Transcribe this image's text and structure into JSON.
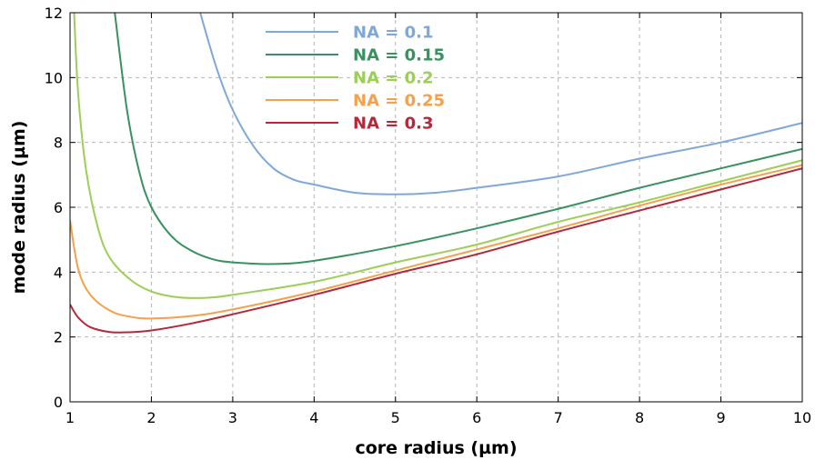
{
  "chart_data": {
    "type": "line",
    "title": "",
    "xlabel": "core radius (µm)",
    "ylabel": "mode radius (µm)",
    "xlim": [
      1,
      10
    ],
    "ylim": [
      0,
      12
    ],
    "xticks": [
      1,
      2,
      3,
      4,
      5,
      6,
      7,
      8,
      9,
      10
    ],
    "yticks": [
      0,
      2,
      4,
      6,
      8,
      10,
      12
    ],
    "grid": true,
    "legend_position": "top-left (inside plot)",
    "series": [
      {
        "name": "NA = 0.1",
        "color": "#7fa8d8",
        "x": [
          2.6,
          2.8,
          3.0,
          3.25,
          3.5,
          3.75,
          4.0,
          4.5,
          5.0,
          5.5,
          6.0,
          7.0,
          8.0,
          9.0,
          10.0
        ],
        "y": [
          12.0,
          10.3,
          9.0,
          7.9,
          7.2,
          6.85,
          6.7,
          6.45,
          6.4,
          6.45,
          6.6,
          6.95,
          7.5,
          8.0,
          8.6
        ]
      },
      {
        "name": "NA = 0.15",
        "color": "#3a9160",
        "x": [
          1.55,
          1.7,
          1.85,
          2.0,
          2.25,
          2.5,
          2.75,
          3.0,
          3.5,
          4.0,
          5.0,
          6.0,
          7.0,
          8.0,
          9.0,
          10.0
        ],
        "y": [
          12.0,
          9.0,
          7.1,
          6.0,
          5.1,
          4.65,
          4.4,
          4.3,
          4.25,
          4.35,
          4.8,
          5.35,
          5.95,
          6.6,
          7.2,
          7.8
        ]
      },
      {
        "name": "NA = 0.2",
        "color": "#9bcf55",
        "x": [
          1.05,
          1.1,
          1.2,
          1.35,
          1.5,
          1.75,
          2.0,
          2.25,
          2.5,
          2.75,
          3.0,
          4.0,
          5.0,
          6.0,
          7.0,
          8.0,
          9.0,
          10.0
        ],
        "y": [
          12.0,
          9.5,
          7.1,
          5.3,
          4.4,
          3.75,
          3.4,
          3.25,
          3.2,
          3.22,
          3.3,
          3.7,
          4.3,
          4.85,
          5.55,
          6.15,
          6.8,
          7.45
        ]
      },
      {
        "name": "NA = 0.25",
        "color": "#f5a04a",
        "x": [
          1.0,
          1.1,
          1.25,
          1.5,
          1.75,
          2.0,
          2.5,
          3.0,
          4.0,
          5.0,
          6.0,
          7.0,
          8.0,
          9.0,
          10.0
        ],
        "y": [
          5.6,
          4.1,
          3.3,
          2.8,
          2.62,
          2.57,
          2.65,
          2.85,
          3.4,
          4.05,
          4.7,
          5.35,
          6.05,
          6.7,
          7.3
        ]
      },
      {
        "name": "NA = 0.3",
        "color": "#b5283a",
        "x": [
          1.0,
          1.1,
          1.25,
          1.5,
          1.75,
          2.0,
          2.5,
          3.0,
          4.0,
          5.0,
          6.0,
          7.0,
          8.0,
          9.0,
          10.0
        ],
        "y": [
          3.0,
          2.6,
          2.3,
          2.15,
          2.15,
          2.2,
          2.42,
          2.7,
          3.3,
          3.95,
          4.55,
          5.25,
          5.9,
          6.55,
          7.2
        ]
      }
    ]
  }
}
